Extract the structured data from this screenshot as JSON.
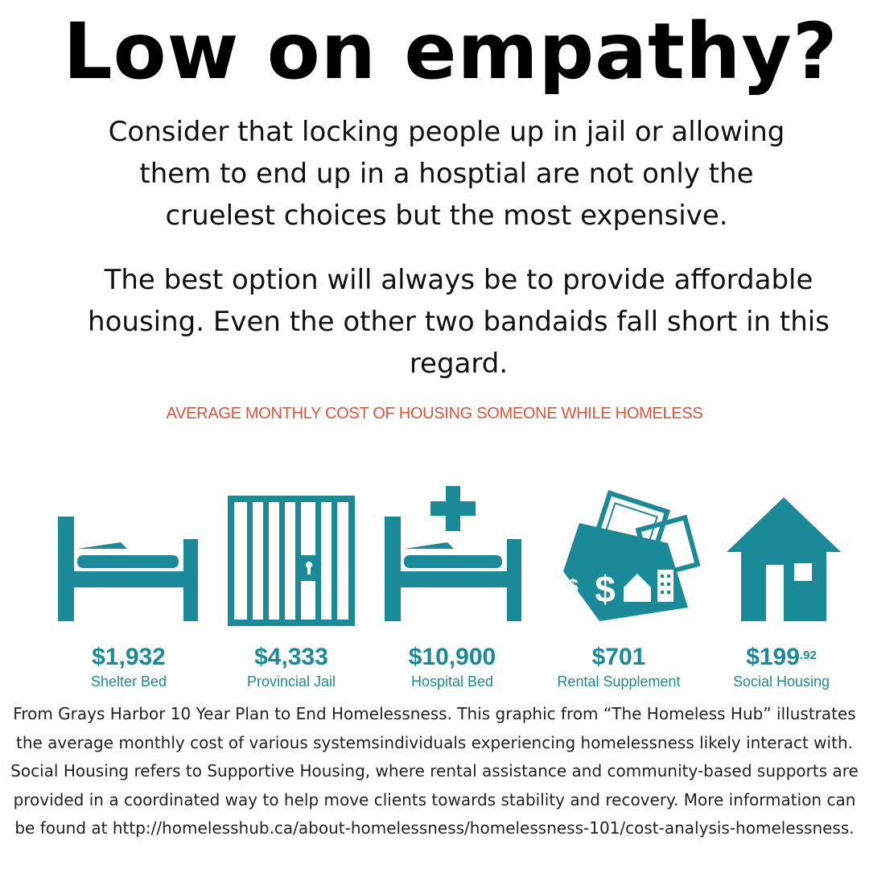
{
  "headline": "Low on empathy?",
  "paragraph1": "Consider that locking people up in jail or allowing them to end up in a hosptial are not only the cruelest choices but the most expensive.",
  "paragraph2": "The best option will always be to provide affordable housing. Even the other two bandaids fall short in this regard.",
  "infographic": {
    "title": "AVERAGE MONTHLY COST OF HOUSING SOMEONE WHILE HOMELESS",
    "accent_color": "#1a8a99",
    "title_color": "#e0553a",
    "items": [
      {
        "icon": "shelter-bed-icon",
        "amount": "$1,932",
        "amount_sup": "",
        "label": "Shelter Bed"
      },
      {
        "icon": "jail-cell-icon",
        "amount": "$4,333",
        "amount_sup": "",
        "label": "Provincial Jail"
      },
      {
        "icon": "hospital-bed-icon",
        "amount": "$10,900",
        "amount_sup": "",
        "label": "Hospital Bed"
      },
      {
        "icon": "rental-money-icon",
        "amount": "$701",
        "amount_sup": "",
        "label": "Rental Supplement"
      },
      {
        "icon": "house-icon",
        "amount": "$199",
        "amount_sup": ".92",
        "label": "Social Housing"
      }
    ]
  },
  "caption": "From Grays Harbor 10 Year Plan to End Homelessness. This graphic from “The Homeless Hub” illustrates the average monthly cost of various systemsindividuals experiencing homelessness likely interact with. Social Housing refers to Supportive Housing, where rental assistance and community-based supports are provided in a coordinated way to help move clients towards stability and recovery. More information can be found at  http://homelesshub.ca/about-homelessness/homelessness-101/cost-analysis-homelessness."
}
